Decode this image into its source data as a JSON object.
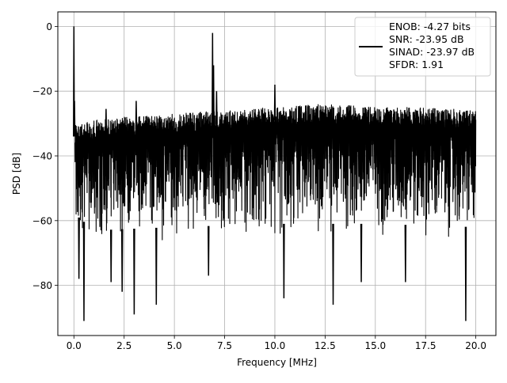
{
  "chart_data": {
    "type": "line",
    "title": "",
    "xlabel": "Frequency [MHz]",
    "ylabel": "PSD [dB]",
    "xlim": [
      -0.8,
      21.0
    ],
    "ylim": [
      -95.5,
      4.5
    ],
    "xticks": [
      0.0,
      2.5,
      5.0,
      7.5,
      10.0,
      12.5,
      15.0,
      17.5,
      20.0
    ],
    "xtick_labels": [
      "0.0",
      "2.5",
      "5.0",
      "7.5",
      "10.0",
      "12.5",
      "15.0",
      "17.5",
      "20.0"
    ],
    "yticks": [
      0,
      -20,
      -40,
      -60,
      -80
    ],
    "ytick_labels": [
      "0",
      "−20",
      "−40",
      "−60",
      "−80"
    ],
    "grid": true,
    "legend_position": "top-right",
    "legend_entries": [
      "ENOB: -4.27 bits",
      "SNR: -23.95 dB",
      "SINAD: -23.97 dB",
      "SFDR: 1.91"
    ],
    "series": [
      {
        "color": "#000000",
        "description": "dense noise PSD, upper envelope about -26 dB, lower troughs down to about -91 dB",
        "upper_envelope": [
          [
            0.05,
            -30
          ],
          [
            0.5,
            -30
          ],
          [
            1.0,
            -29
          ],
          [
            2.5,
            -28
          ],
          [
            5.0,
            -27
          ],
          [
            7.5,
            -26
          ],
          [
            10.0,
            -25
          ],
          [
            12.5,
            -24
          ],
          [
            15.0,
            -25
          ],
          [
            17.5,
            -25
          ],
          [
            20.0,
            -26
          ]
        ],
        "lower_envelope": [
          [
            0.05,
            -62
          ],
          [
            1.0,
            -67
          ],
          [
            5.0,
            -66
          ],
          [
            10.0,
            -65
          ],
          [
            15.0,
            -65
          ],
          [
            20.0,
            -66
          ]
        ],
        "peaks": [
          [
            0.0,
            0.0
          ],
          [
            0.03,
            -23
          ],
          [
            1.6,
            -25.5
          ],
          [
            3.1,
            -23
          ],
          [
            6.9,
            -2
          ],
          [
            6.95,
            -12
          ],
          [
            7.1,
            -20
          ],
          [
            10.0,
            -18
          ]
        ],
        "troughs": [
          [
            0.25,
            -78
          ],
          [
            0.5,
            -91
          ],
          [
            1.85,
            -79
          ],
          [
            2.4,
            -82
          ],
          [
            3.0,
            -89
          ],
          [
            4.1,
            -86
          ],
          [
            6.7,
            -77
          ],
          [
            10.45,
            -84
          ],
          [
            12.9,
            -86
          ],
          [
            14.3,
            -79
          ],
          [
            16.5,
            -79
          ],
          [
            19.5,
            -91
          ]
        ]
      }
    ]
  }
}
